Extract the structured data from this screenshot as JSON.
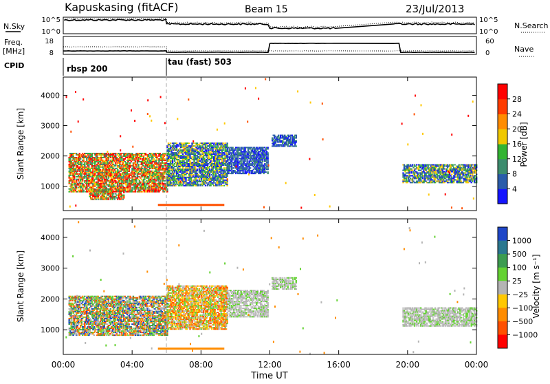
{
  "header": {
    "station": "Kapuskasing (fitACF)",
    "beam": "Beam 15",
    "date": "23/Jul/2013"
  },
  "noise_panel": {
    "left_label": "N.Sky",
    "right_label": "N.Search",
    "left_ticks": [
      "10^5",
      "10^0"
    ],
    "right_ticks": [
      "10^5",
      "10^0"
    ]
  },
  "freq_panel": {
    "left_label_1": "Freq.",
    "left_label_2": "[MHz]",
    "right_label": "Nave",
    "left_ticks": [
      "18",
      "8"
    ],
    "right_ticks": [
      "60",
      "0"
    ]
  },
  "cpid_panel": {
    "label": "CPID",
    "programs": [
      {
        "name": "rbsp 200",
        "start_hour": 0
      },
      {
        "name": "tau (fast) 503",
        "start_hour": 6
      }
    ]
  },
  "chart_data": [
    {
      "type": "heatmap",
      "title": "",
      "ylabel": "Slant Range [km]",
      "ylim": [
        200,
        4600
      ],
      "xlim": [
        0,
        24
      ],
      "yticks": [
        "1000",
        "2000",
        "3000",
        "4000"
      ],
      "colorbar_label": "Power [dB]",
      "colorbar_ticks": [
        "4",
        "8",
        "12",
        "16",
        "20",
        "24",
        "28"
      ],
      "colorbar_colors": [
        "#1414ff",
        "#2a5caa",
        "#3c8c6e",
        "#32b432",
        "#f0c800",
        "#ff8c00",
        "#ff3c00",
        "#ff0000"
      ],
      "echo_regions": [
        {
          "t0": 0.3,
          "t1": 6.0,
          "r0": 800,
          "r1": 2100,
          "level": "high"
        },
        {
          "t0": 1.5,
          "t1": 3.5,
          "r0": 550,
          "r1": 900,
          "level": "high"
        },
        {
          "t0": 6.0,
          "t1": 9.5,
          "r0": 1000,
          "r1": 2400,
          "level": "mid"
        },
        {
          "t0": 9.5,
          "t1": 11.9,
          "r0": 1400,
          "r1": 2300,
          "level": "low"
        },
        {
          "t0": 12.1,
          "t1": 13.5,
          "r0": 2300,
          "r1": 2700,
          "level": "low"
        },
        {
          "t0": 19.7,
          "t1": 24.0,
          "r0": 1100,
          "r1": 1700,
          "level": "mid"
        }
      ]
    },
    {
      "type": "heatmap",
      "title": "",
      "ylabel": "Slant Range [km]",
      "ylim": [
        200,
        4600
      ],
      "xlim": [
        0,
        24
      ],
      "yticks": [
        "1000",
        "2000",
        "3000",
        "4000"
      ],
      "xticks": [
        "00:00",
        "04:00",
        "08:00",
        "12:00",
        "16:00",
        "20:00",
        "00:00"
      ],
      "xlabel": "Time UT",
      "colorbar_label": "Velocity [m s⁻¹]",
      "colorbar_ticks": [
        "1000",
        "500",
        "100",
        "25",
        "−25",
        "−100",
        "−500",
        "−1000"
      ],
      "colorbar_colors": [
        "#1e46c8",
        "#2a7890",
        "#3c9c50",
        "#64d232",
        "#b4b4b4",
        "#ffc800",
        "#ff8c00",
        "#ff5000",
        "#ff0000"
      ],
      "echo_regions": [
        {
          "t0": 0.3,
          "t1": 6.0,
          "r0": 800,
          "r1": 2100,
          "level": "mixed"
        },
        {
          "t0": 6.0,
          "t1": 9.5,
          "r0": 1000,
          "r1": 2400,
          "level": "orange"
        },
        {
          "t0": 9.5,
          "t1": 11.9,
          "r0": 1400,
          "r1": 2300,
          "level": "grey"
        },
        {
          "t0": 12.1,
          "t1": 13.5,
          "r0": 2300,
          "r1": 2700,
          "level": "grey"
        },
        {
          "t0": 19.7,
          "t1": 24.0,
          "r0": 1100,
          "r1": 1700,
          "level": "grey"
        }
      ]
    }
  ]
}
